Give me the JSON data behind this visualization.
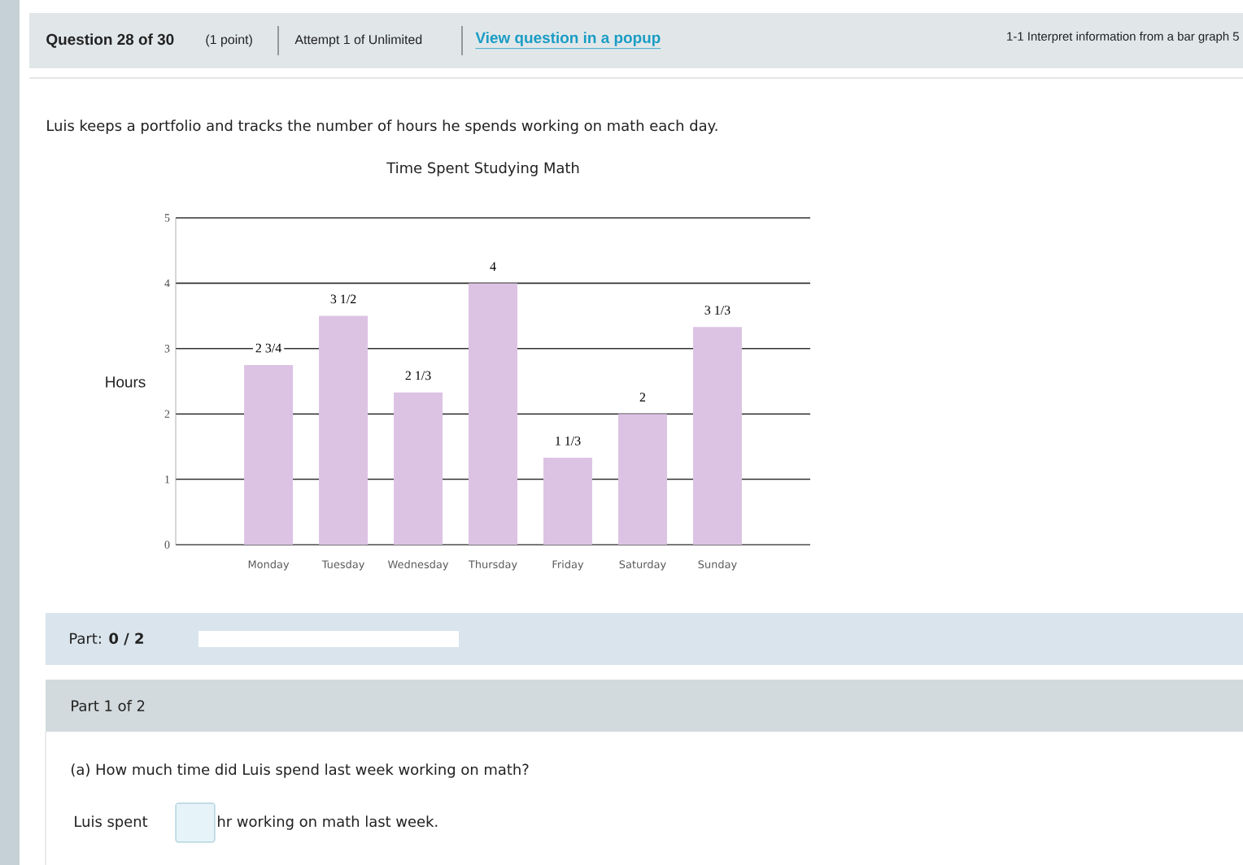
{
  "chart_data": {
    "type": "bar",
    "title": "Time Spent Studying Math",
    "subtitle": "Luis keeps a portfolio and tracks the number of hours he spends working on math each day.",
    "ylabel": "Hours",
    "categories": [
      "Monday",
      "Tuesday",
      "Wednesday",
      "Thursday",
      "Friday",
      "Saturday",
      "Sunday"
    ],
    "values": [
      2.75,
      3.5,
      2.33,
      4,
      1.33,
      2,
      3.33
    ],
    "value_labels": [
      "2 3/4",
      "3 1/2",
      "2 1/3",
      "4",
      "1 1/3",
      "2",
      "3 1/3"
    ],
    "color": "#dcc3e4",
    "ylim": [
      0,
      5
    ],
    "yticks": [
      0,
      1,
      2,
      3,
      4,
      5
    ],
    "grid": "y",
    "annotations": [
      "**Question 28 of 30**",
      "(1 point)",
      "Attempt 1 of Unlimited",
      "View question in a popup",
      "1-1 Interpret information from a bar graph 5",
      "Part: **0 / 2**",
      "Part 1 of 2",
      "(a) How much time did Luis spend last week working on math?",
      "Luis spent",
      "hr working on math last week."
    ]
  }
}
